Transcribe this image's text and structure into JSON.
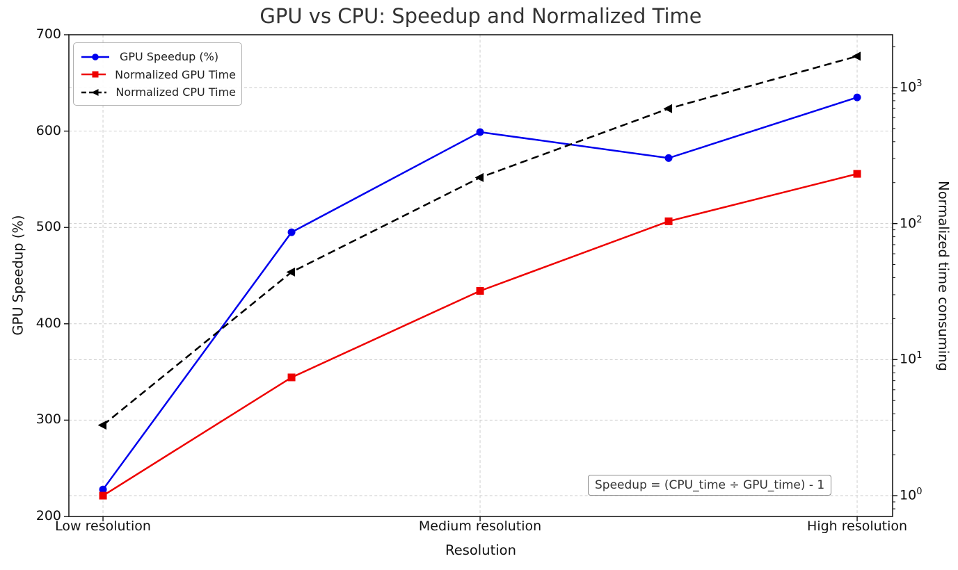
{
  "chart_data": {
    "type": "line",
    "title": "GPU vs CPU: Speedup and Normalized Time",
    "xlabel": "Resolution",
    "ylabel_left": "GPU Speedup (%)",
    "ylabel_right": "Normalized time consuming",
    "x": [
      0,
      1,
      2,
      3,
      4
    ],
    "xticks": {
      "positions": [
        0,
        2,
        4
      ],
      "labels": [
        "Low resolution",
        "Medium resolution",
        "High resolution"
      ]
    },
    "x_axis": {
      "lim": [
        -0.181,
        4.188
      ]
    },
    "left_axis": {
      "scale": "linear",
      "ticks": [
        200,
        300,
        400,
        500,
        600,
        700
      ],
      "lim": [
        200,
        700
      ]
    },
    "right_axis": {
      "scale": "log",
      "tick_exponents": [
        0,
        1,
        2,
        3
      ],
      "lim": [
        0.703,
        2443
      ]
    },
    "series": [
      {
        "name": "GPU Speedup (%)",
        "axis": "left",
        "color": "#0000ee",
        "line_style": "solid",
        "marker": "circle",
        "values": [
          228,
          495,
          599,
          572,
          635
        ]
      },
      {
        "name": "Normalized GPU Time",
        "axis": "right",
        "color": "#ee0000",
        "line_style": "solid",
        "marker": "square",
        "values": [
          1.0,
          7.4,
          32,
          104,
          232
        ]
      },
      {
        "name": "Normalized CPU Time",
        "axis": "right",
        "color": "#000000",
        "line_style": "dashed",
        "marker": "triangle-left",
        "values": [
          3.3,
          44,
          218,
          700,
          1700
        ]
      }
    ],
    "legend": {
      "position": "upper left"
    },
    "grid": {
      "on": true,
      "style": "dashed",
      "color": "#cdcdcd"
    },
    "annotation": "Speedup = (CPU_time ÷ GPU_time) - 1"
  }
}
